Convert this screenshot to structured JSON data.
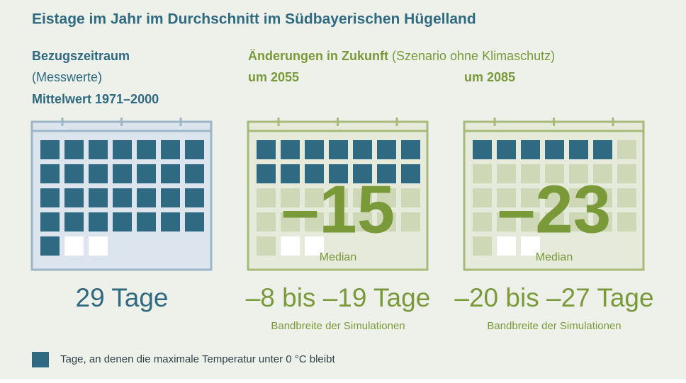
{
  "title": "Eistage im Jahr im Durchschnitt im Südbayerischen Hügelland",
  "reference": {
    "heading": "Bezugszeitraum",
    "note": "(Messwerte)",
    "period": "Mittelwert 1971–2000",
    "days": {
      "value": 29,
      "label": "29 Tage"
    }
  },
  "future": {
    "heading": "Änderungen in Zukunft",
    "note": "(Szenario ohne Klimaschutz)",
    "scenarios": [
      {
        "label": "um 2055",
        "change": {
          "value": -15,
          "label": "–15"
        },
        "median": "Median",
        "range": "–8 bis –19 Tage",
        "range_note": "Bandbreite der Simulationen"
      },
      {
        "label": "um 2085",
        "change": {
          "value": -23,
          "label": "–23"
        },
        "median": "Median",
        "range": "–20 bis –27 Tage",
        "range_note": "Bandbreite der Simulationen"
      }
    ]
  },
  "legend": "Tage, an denen die maximale Temperatur unter 0 °C bleibt"
}
